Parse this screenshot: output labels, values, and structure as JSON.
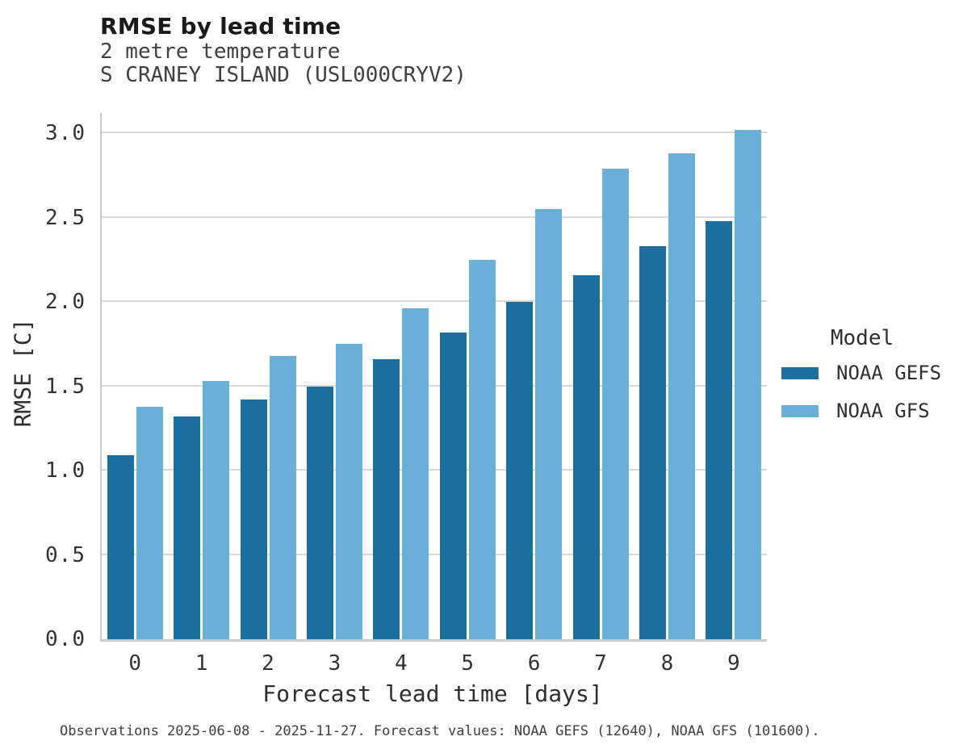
{
  "header": {
    "title": "RMSE by lead time",
    "subtitle1": "2 metre temperature",
    "subtitle2": "S CRANEY ISLAND (USL000CRYV2)"
  },
  "legend": {
    "title": "Model"
  },
  "footer": {
    "caption": "Observations 2025-06-08 - 2025-11-27. Forecast values: NOAA GEFS (12640), NOAA GFS (101600)."
  },
  "colors": {
    "gefs_bar": "#1c6e9e",
    "gfs_bar": "#69afd8",
    "gridline": "#d8d8d8",
    "spine": "#cbcbcb"
  },
  "chart_data": {
    "type": "bar",
    "title": "RMSE by lead time",
    "subtitle": [
      "2 metre temperature",
      "S CRANEY ISLAND (USL000CRYV2)"
    ],
    "xlabel": "Forecast lead time [days]",
    "ylabel": "RMSE [C]",
    "categories": [
      "0",
      "1",
      "2",
      "3",
      "4",
      "5",
      "6",
      "7",
      "8",
      "9"
    ],
    "series": [
      {
        "name": "NOAA GEFS",
        "color": "#1c6e9e",
        "values": [
          1.09,
          1.32,
          1.42,
          1.5,
          1.66,
          1.82,
          2.0,
          2.16,
          2.33,
          2.48
        ]
      },
      {
        "name": "NOAA GFS",
        "color": "#69afd8",
        "values": [
          1.38,
          1.53,
          1.68,
          1.75,
          1.96,
          2.25,
          2.55,
          2.79,
          2.88,
          3.02
        ]
      }
    ],
    "yticks": [
      0.0,
      0.5,
      1.0,
      1.5,
      2.0,
      2.5,
      3.0
    ],
    "ylim": [
      0,
      3.12
    ],
    "grid": true,
    "legend_title": "Model",
    "legend_position": "right"
  }
}
